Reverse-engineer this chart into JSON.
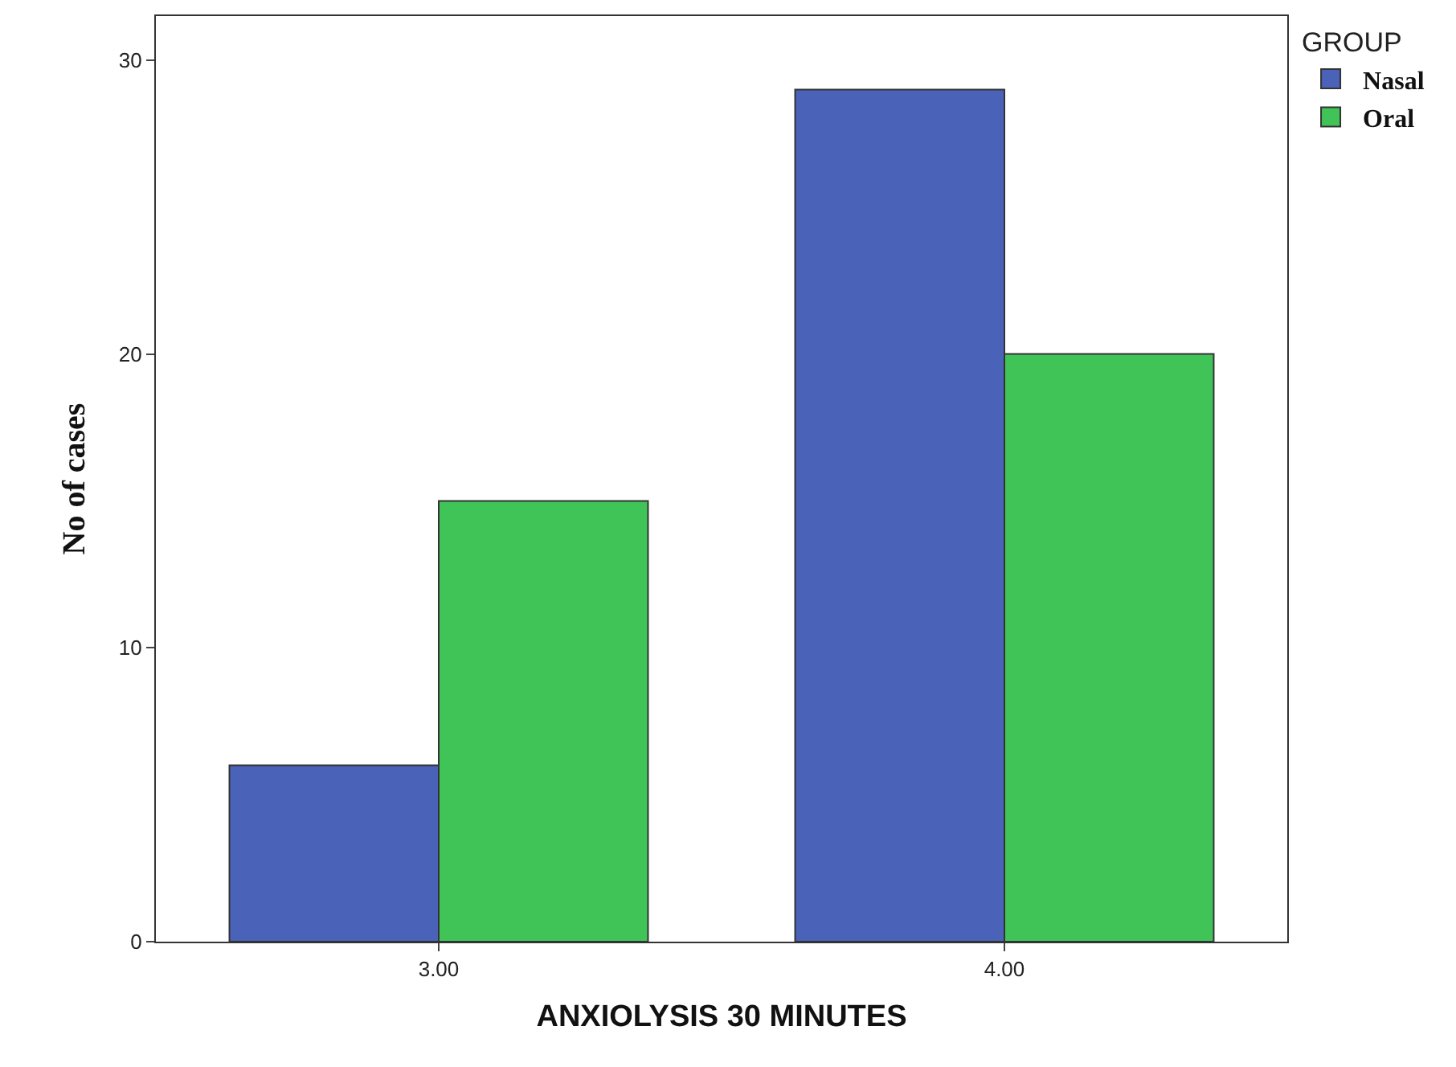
{
  "chart_data": {
    "type": "bar",
    "xlabel": "ANXIOLYSIS 30 MINUTES",
    "ylabel": "No of cases",
    "legend_title": "GROUP",
    "categories": [
      "3.00",
      "4.00"
    ],
    "series": [
      {
        "name": "Nasal",
        "color": "#4a62b8",
        "values": [
          6,
          29
        ]
      },
      {
        "name": "Oral",
        "color": "#40c458",
        "values": [
          15,
          20
        ]
      }
    ],
    "ylim": [
      0,
      31.5
    ],
    "yticks": [
      0,
      10,
      20,
      30
    ],
    "legend": "top right"
  }
}
